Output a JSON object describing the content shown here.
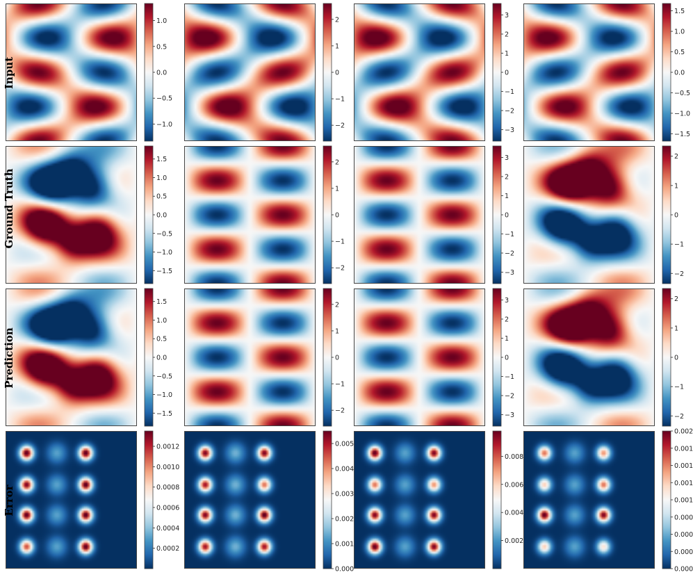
{
  "row_labels": [
    "Input",
    "Ground Truth",
    "Prediction",
    "Error"
  ],
  "colormap": {
    "name": "RdBu_r",
    "stops": [
      "#053061",
      "#2166ac",
      "#4393c3",
      "#92c5de",
      "#d1e5f0",
      "#f7f7f7",
      "#fddbc7",
      "#f4a582",
      "#d6604d",
      "#b2182b",
      "#67001f"
    ]
  },
  "chart_data": [
    {
      "type": "heatmap",
      "row": "Input",
      "column": 1,
      "field": "input",
      "params": {
        "a": 1.0,
        "b": 0.45,
        "c": 0.0,
        "d": 0.0,
        "sign": -1
      },
      "colorbar": {
        "vmin": -1.33,
        "vmax": 1.33,
        "ticks": [
          -1.0,
          -0.5,
          0.0,
          0.5,
          1.0
        ],
        "tick_labels": [
          "−1.0",
          "−0.5",
          "0.0",
          "0.5",
          "1.0"
        ]
      }
    },
    {
      "type": "heatmap",
      "row": "Input",
      "column": 2,
      "field": "input",
      "params": {
        "a": 1.0,
        "b": 0.6,
        "c": 0.0,
        "d": 0.0,
        "sign": 1
      },
      "colorbar": {
        "vmin": -2.6,
        "vmax": 2.6,
        "ticks": [
          -2,
          -1,
          0,
          1,
          2
        ],
        "tick_labels": [
          "−2",
          "−1",
          "0",
          "1",
          "2"
        ]
      }
    },
    {
      "type": "heatmap",
      "row": "Input",
      "column": 3,
      "field": "input",
      "params": {
        "a": 1.0,
        "b": 0.55,
        "c": 0.0,
        "d": 0.0,
        "sign": 1
      },
      "colorbar": {
        "vmin": -3.6,
        "vmax": 3.6,
        "ticks": [
          -3,
          -2,
          -1,
          0,
          1,
          2,
          3
        ],
        "tick_labels": [
          "−3",
          "−2",
          "−1",
          "0",
          "1",
          "2",
          "3"
        ]
      }
    },
    {
      "type": "heatmap",
      "row": "Input",
      "column": 4,
      "field": "input",
      "params": {
        "a": 1.0,
        "b": 0.45,
        "c": 0.0,
        "d": 0.0,
        "sign": 1
      },
      "colorbar": {
        "vmin": -1.68,
        "vmax": 1.68,
        "ticks": [
          -1.5,
          -1.0,
          -0.5,
          0.0,
          0.5,
          1.0,
          1.5
        ],
        "tick_labels": [
          "−1.5",
          "−1.0",
          "−0.5",
          "0.0",
          "0.5",
          "1.0",
          "1.5"
        ]
      }
    },
    {
      "type": "heatmap",
      "row": "Ground Truth",
      "column": 1,
      "field": "output",
      "params": {
        "a": 0.35,
        "b": 0.0,
        "c": 1.0,
        "d": 0.55,
        "sign": 1
      },
      "colorbar": {
        "vmin": -1.85,
        "vmax": 1.85,
        "ticks": [
          -1.5,
          -1.0,
          -0.5,
          0.0,
          0.5,
          1.0,
          1.5
        ],
        "tick_labels": [
          "−1.5",
          "−1.0",
          "−0.5",
          "0.0",
          "0.5",
          "1.0",
          "1.5"
        ]
      }
    },
    {
      "type": "heatmap",
      "row": "Ground Truth",
      "column": 2,
      "field": "output",
      "params": {
        "a": 1.0,
        "b": 0.05,
        "c": 0.0,
        "d": 0.0,
        "sign": -1
      },
      "colorbar": {
        "vmin": -2.6,
        "vmax": 2.6,
        "ticks": [
          -2,
          -1,
          0,
          1,
          2
        ],
        "tick_labels": [
          "−2",
          "−1",
          "0",
          "1",
          "2"
        ]
      }
    },
    {
      "type": "heatmap",
      "row": "Ground Truth",
      "column": 3,
      "field": "output",
      "params": {
        "a": 1.0,
        "b": 0.1,
        "c": 0.0,
        "d": 0.0,
        "sign": -1
      },
      "colorbar": {
        "vmin": -3.6,
        "vmax": 3.6,
        "ticks": [
          -3,
          -2,
          -1,
          0,
          1,
          2,
          3
        ],
        "tick_labels": [
          "−3",
          "−2",
          "−1",
          "0",
          "1",
          "2",
          "3"
        ]
      }
    },
    {
      "type": "heatmap",
      "row": "Ground Truth",
      "column": 4,
      "field": "output",
      "params": {
        "a": 0.35,
        "b": 0.0,
        "c": 1.0,
        "d": 0.55,
        "sign": -1
      },
      "colorbar": {
        "vmin": -2.35,
        "vmax": 2.35,
        "ticks": [
          -2,
          -1,
          0,
          1,
          2
        ],
        "tick_labels": [
          "−2",
          "−1",
          "0",
          "1",
          "2"
        ]
      }
    },
    {
      "type": "heatmap",
      "row": "Prediction",
      "column": 1,
      "field": "output",
      "params": {
        "a": 0.35,
        "b": 0.0,
        "c": 1.0,
        "d": 0.55,
        "sign": 1
      },
      "colorbar": {
        "vmin": -1.85,
        "vmax": 1.85,
        "ticks": [
          -1.5,
          -1.0,
          -0.5,
          0.0,
          0.5,
          1.0,
          1.5
        ],
        "tick_labels": [
          "−1.5",
          "−1.0",
          "−0.5",
          "0.0",
          "0.5",
          "1.0",
          "1.5"
        ]
      }
    },
    {
      "type": "heatmap",
      "row": "Prediction",
      "column": 2,
      "field": "output",
      "params": {
        "a": 1.0,
        "b": 0.05,
        "c": 0.0,
        "d": 0.0,
        "sign": -1
      },
      "colorbar": {
        "vmin": -2.6,
        "vmax": 2.6,
        "ticks": [
          -2,
          -1,
          0,
          1,
          2
        ],
        "tick_labels": [
          "−2",
          "−1",
          "0",
          "1",
          "2"
        ]
      }
    },
    {
      "type": "heatmap",
      "row": "Prediction",
      "column": 3,
      "field": "output",
      "params": {
        "a": 1.0,
        "b": 0.1,
        "c": 0.0,
        "d": 0.0,
        "sign": -1
      },
      "colorbar": {
        "vmin": -3.6,
        "vmax": 3.6,
        "ticks": [
          -3,
          -2,
          -1,
          0,
          1,
          2,
          3
        ],
        "tick_labels": [
          "−3",
          "−2",
          "−1",
          "0",
          "1",
          "2",
          "3"
        ]
      }
    },
    {
      "type": "heatmap",
      "row": "Prediction",
      "column": 4,
      "field": "output",
      "params": {
        "a": 0.35,
        "b": 0.0,
        "c": 1.0,
        "d": 0.55,
        "sign": -1
      },
      "colorbar": {
        "vmin": -2.35,
        "vmax": 2.35,
        "ticks": [
          -2,
          -1,
          0,
          1,
          2
        ],
        "tick_labels": [
          "−2",
          "−1",
          "0",
          "1",
          "2"
        ]
      }
    },
    {
      "type": "heatmap",
      "row": "Error",
      "column": 1,
      "field": "error",
      "params": {
        "peak": [
          1.0,
          1.0,
          0.95,
          1.0,
          1.0,
          1.0,
          0.8,
          1.0
        ],
        "mid": 0.22
      },
      "colorbar": {
        "vmin": 0.0,
        "vmax": 0.00135,
        "ticks": [
          0.0002,
          0.0004,
          0.0006,
          0.0008,
          0.001,
          0.0012
        ],
        "tick_labels": [
          "0.0002",
          "0.0004",
          "0.0006",
          "0.0008",
          "0.0010",
          "0.0012"
        ]
      }
    },
    {
      "type": "heatmap",
      "row": "Error",
      "column": 2,
      "field": "error",
      "params": {
        "peak": [
          0.95,
          0.95,
          0.9,
          0.75,
          0.95,
          1.0,
          0.9,
          0.9
        ],
        "mid": 0.25
      },
      "colorbar": {
        "vmin": 0.0,
        "vmax": 0.0055,
        "ticks": [
          0.0,
          0.001,
          0.002,
          0.003,
          0.004,
          0.005
        ],
        "tick_labels": [
          "0.000",
          "0.001",
          "0.002",
          "0.003",
          "0.004",
          "0.005"
        ]
      }
    },
    {
      "type": "heatmap",
      "row": "Error",
      "column": 3,
      "field": "error",
      "params": {
        "peak": [
          1.0,
          0.95,
          0.75,
          0.7,
          0.95,
          0.95,
          1.0,
          0.95
        ],
        "mid": 0.22
      },
      "colorbar": {
        "vmin": 0.0,
        "vmax": 0.0098,
        "ticks": [
          0.002,
          0.004,
          0.006,
          0.008
        ],
        "tick_labels": [
          "0.002",
          "0.004",
          "0.006",
          "0.008"
        ]
      }
    },
    {
      "type": "heatmap",
      "row": "Error",
      "column": 4,
      "field": "error",
      "params": {
        "peak": [
          0.75,
          0.7,
          0.6,
          0.75,
          1.0,
          0.95,
          0.6,
          0.55
        ],
        "mid": 0.22
      },
      "colorbar": {
        "vmin": 0.0,
        "vmax": 0.002,
        "ticks": [
          0.0,
          0.00025,
          0.0005,
          0.00075,
          0.001,
          0.00125,
          0.0015,
          0.00175,
          0.002
        ],
        "tick_labels": [
          "0.00000",
          "0.00025",
          "0.00050",
          "0.00075",
          "0.00100",
          "0.00125",
          "0.00150",
          "0.00175",
          "0.00200"
        ]
      }
    }
  ]
}
